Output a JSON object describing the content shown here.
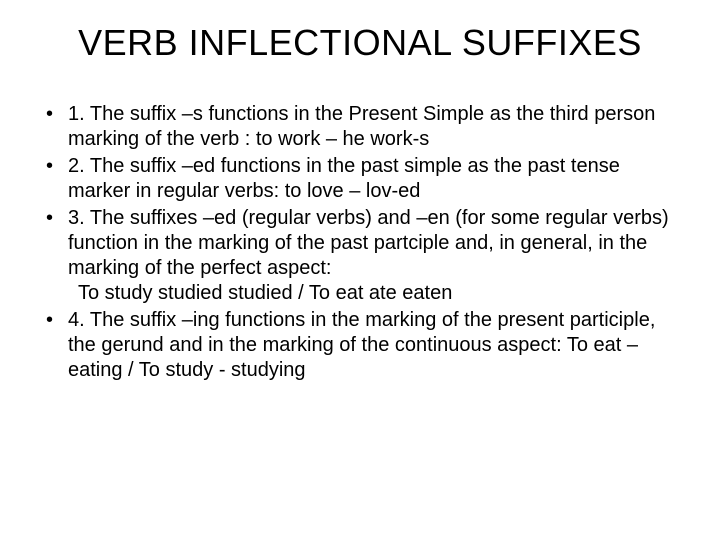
{
  "title": "VERB INFLECTIONAL SUFFIXES",
  "bullets": [
    {
      "text": "1. The suffix –s functions in the Present Simple as the third person marking of the verb : to work – he work-s"
    },
    {
      "text": "2. The suffix –ed functions in the past simple as the past tense marker in regular verbs: to love – lov-ed"
    },
    {
      "text": "3. The suffixes –ed (regular verbs) and –en (for some regular verbs) function in the marking of the past partciple and, in general, in the marking of the perfect aspect:",
      "sub": "To study studied studied / To eat ate eaten"
    },
    {
      "text": "4. The suffix –ing functions in the marking of the present participle, the gerund and in the marking of the continuous aspect: To eat – eating / To study - studying"
    }
  ],
  "style": {
    "background_color": "#ffffff",
    "text_color": "#000000",
    "title_fontsize": 36,
    "body_fontsize": 20,
    "font_family": "Arial"
  }
}
